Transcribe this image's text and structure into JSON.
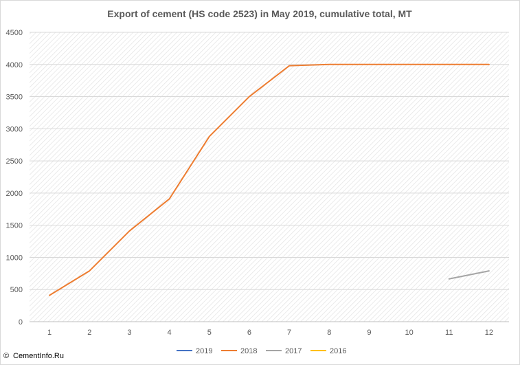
{
  "chart_data": {
    "type": "line",
    "title": "Export of cement (HS code 2523) in May 2019, cumulative total, MT",
    "xlabel": "",
    "ylabel": "",
    "x": [
      1,
      2,
      3,
      4,
      5,
      6,
      7,
      8,
      9,
      10,
      11,
      12
    ],
    "ylim": [
      0,
      4500
    ],
    "yticks": [
      0,
      500,
      1000,
      1500,
      2000,
      2500,
      3000,
      3500,
      4000,
      4500
    ],
    "grid": true,
    "legend_position": "bottom",
    "series": [
      {
        "name": "2019",
        "color": "#4472c4",
        "values": [
          null,
          null,
          null,
          null,
          null,
          null,
          null,
          null,
          null,
          null,
          null,
          null
        ]
      },
      {
        "name": "2018",
        "color": "#ed7d31",
        "values": [
          410,
          790,
          1410,
          1910,
          2880,
          3500,
          3980,
          4000,
          4000,
          4000,
          4000,
          4000
        ]
      },
      {
        "name": "2017",
        "color": "#a5a5a5",
        "values": [
          null,
          null,
          null,
          null,
          null,
          null,
          null,
          null,
          null,
          null,
          665,
          790
        ]
      },
      {
        "name": "2016",
        "color": "#ffc000",
        "values": [
          null,
          null,
          null,
          null,
          null,
          null,
          null,
          null,
          null,
          null,
          null,
          null
        ]
      }
    ]
  },
  "credit": {
    "symbol": "©",
    "text": "CementInfo.Ru"
  }
}
